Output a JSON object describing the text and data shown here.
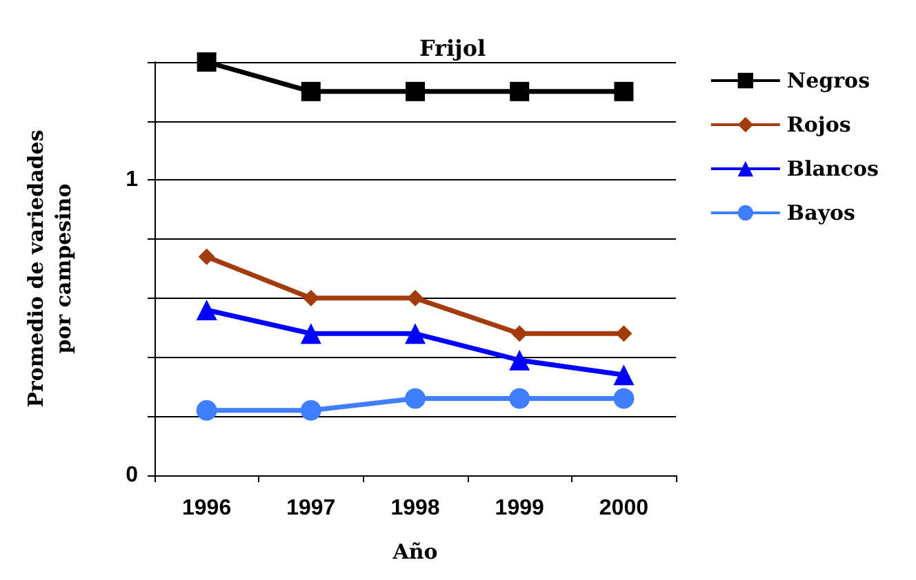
{
  "chart_data": {
    "type": "line",
    "title": "Frijol",
    "xlabel": "Año",
    "ylabel": "Promedio de variedades por campesino",
    "categories": [
      "1996",
      "1997",
      "1998",
      "1999",
      "2000"
    ],
    "series": [
      {
        "name": "Negros",
        "color": "#000000",
        "marker": "square",
        "values": [
          1.4,
          1.3,
          1.3,
          1.3,
          1.3
        ]
      },
      {
        "name": "Rojos",
        "color": "#a33b0c",
        "marker": "diamond",
        "values": [
          0.74,
          0.6,
          0.6,
          0.48,
          0.48
        ]
      },
      {
        "name": "Blancos",
        "color": "#0000ff",
        "marker": "triangle",
        "values": [
          0.56,
          0.48,
          0.48,
          0.39,
          0.34
        ]
      },
      {
        "name": "Bayos",
        "color": "#3f7fff",
        "marker": "circle",
        "values": [
          0.22,
          0.22,
          0.26,
          0.26,
          0.26
        ]
      }
    ],
    "ylim": [
      0,
      1.4
    ],
    "yticks": [
      0,
      {
        "value": 0.2,
        "label": null
      },
      {
        "value": 0.4,
        "label": null
      },
      {
        "value": 0.6,
        "label": null
      },
      {
        "value": 0.8,
        "label": null
      },
      1,
      {
        "value": 1.2,
        "label": null
      },
      {
        "value": 1.4,
        "label": null
      }
    ],
    "grid": "y",
    "legend": "right",
    "line_style": "solid"
  }
}
